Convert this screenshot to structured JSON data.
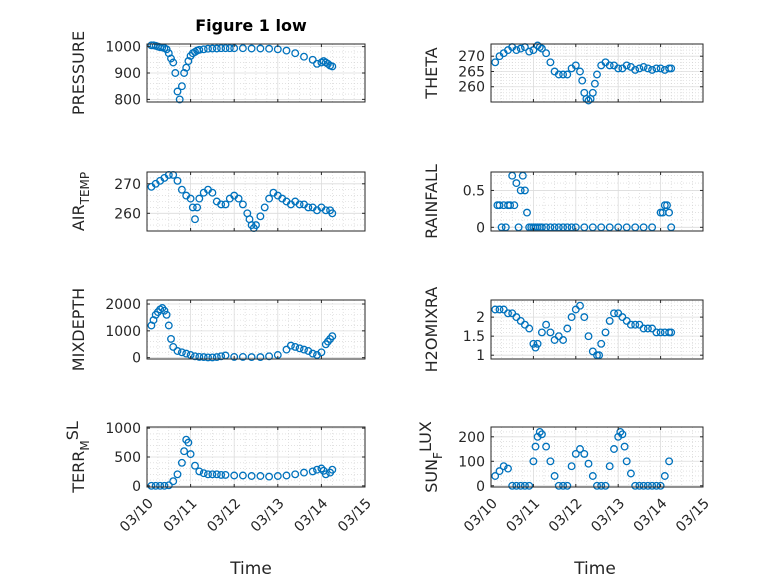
{
  "figure": {
    "title": "Figure 1 low",
    "xlabel": "Time",
    "x_ticks": [
      "03/10",
      "03/11",
      "03/12",
      "03/13",
      "03/14",
      "03/15"
    ],
    "marker_color": "#0072BD",
    "grid_color": "#d0d0d0"
  },
  "chart_data": [
    {
      "type": "scatter",
      "title": "Figure 1 low",
      "ylabel": "PRESSURE",
      "ylabel_sub": "",
      "xlim": [
        0,
        5
      ],
      "ylim": [
        790,
        1010
      ],
      "yticks": [
        800,
        900,
        1000
      ],
      "ytick_labels": [
        "800",
        "900",
        "1000"
      ],
      "x_tick_labels": [],
      "x": [
        0.1,
        0.15,
        0.2,
        0.25,
        0.3,
        0.35,
        0.4,
        0.45,
        0.5,
        0.55,
        0.6,
        0.65,
        0.7,
        0.75,
        0.8,
        0.85,
        0.9,
        0.95,
        1.0,
        1.05,
        1.1,
        1.15,
        1.2,
        1.3,
        1.4,
        1.5,
        1.6,
        1.7,
        1.8,
        1.9,
        2.0,
        2.2,
        2.4,
        2.6,
        2.8,
        3.0,
        3.2,
        3.4,
        3.6,
        3.8,
        3.9,
        4.0,
        4.05,
        4.1,
        4.15,
        4.2,
        4.25
      ],
      "y": [
        1005,
        1005,
        1003,
        1000,
        998,
        997,
        995,
        990,
        975,
        955,
        940,
        900,
        830,
        800,
        850,
        900,
        920,
        945,
        965,
        975,
        980,
        985,
        988,
        990,
        992,
        993,
        993,
        994,
        994,
        994,
        994,
        994,
        993,
        993,
        992,
        990,
        985,
        975,
        962,
        950,
        935,
        940,
        945,
        940,
        935,
        928,
        925
      ]
    },
    {
      "type": "scatter",
      "title": "",
      "ylabel": "THETA",
      "ylabel_sub": "",
      "xlim": [
        0,
        5
      ],
      "ylim": [
        255,
        274
      ],
      "yticks": [
        260,
        265,
        270
      ],
      "ytick_labels": [
        "260",
        "265",
        "270"
      ],
      "x_tick_labels": [],
      "x": [
        0.1,
        0.2,
        0.3,
        0.4,
        0.5,
        0.6,
        0.7,
        0.8,
        0.9,
        1.0,
        1.1,
        1.15,
        1.2,
        1.3,
        1.4,
        1.5,
        1.6,
        1.7,
        1.8,
        1.9,
        2.0,
        2.1,
        2.15,
        2.2,
        2.25,
        2.3,
        2.35,
        2.4,
        2.45,
        2.5,
        2.6,
        2.7,
        2.8,
        2.9,
        3.0,
        3.1,
        3.2,
        3.3,
        3.4,
        3.5,
        3.6,
        3.7,
        3.8,
        3.9,
        4.0,
        4.1,
        4.2,
        4.25
      ],
      "y": [
        268,
        270,
        271,
        272,
        273,
        272,
        272.5,
        273,
        271.5,
        272,
        273.5,
        273,
        272.5,
        271,
        268,
        265,
        264,
        264,
        264,
        266,
        267,
        265,
        262,
        258,
        256,
        255.5,
        256,
        258,
        261,
        264,
        267,
        268,
        267,
        267,
        266,
        266,
        267,
        266.5,
        265.5,
        266,
        266.5,
        266,
        265.5,
        266,
        266,
        265.5,
        266,
        266
      ]
    },
    {
      "type": "scatter",
      "title": "",
      "ylabel": "AIR",
      "ylabel_sub": "TEMP",
      "xlim": [
        0,
        5
      ],
      "ylim": [
        254,
        274
      ],
      "yticks": [
        260,
        270
      ],
      "ytick_labels": [
        "260",
        "270"
      ],
      "x_tick_labels": [],
      "x": [
        0.1,
        0.2,
        0.3,
        0.4,
        0.5,
        0.6,
        0.7,
        0.8,
        0.9,
        1.0,
        1.05,
        1.1,
        1.15,
        1.2,
        1.3,
        1.4,
        1.5,
        1.6,
        1.7,
        1.8,
        1.9,
        2.0,
        2.1,
        2.2,
        2.3,
        2.35,
        2.4,
        2.45,
        2.5,
        2.6,
        2.7,
        2.8,
        2.9,
        3.0,
        3.1,
        3.2,
        3.3,
        3.4,
        3.5,
        3.6,
        3.7,
        3.8,
        3.9,
        4.0,
        4.1,
        4.2,
        4.25
      ],
      "y": [
        269,
        270,
        271,
        272,
        273,
        273,
        271,
        268,
        266,
        265,
        262,
        258,
        262,
        265,
        267,
        268,
        267,
        264,
        263,
        263,
        265,
        266,
        265,
        263,
        260,
        258,
        256,
        255,
        256,
        259,
        262,
        265,
        267,
        266,
        265,
        264,
        263,
        264,
        263,
        263,
        262,
        262,
        261,
        262,
        261,
        261,
        260
      ]
    },
    {
      "type": "scatter",
      "title": "",
      "ylabel": "RAINFALL",
      "ylabel_sub": "",
      "xlim": [
        0,
        5
      ],
      "ylim": [
        -0.05,
        0.75
      ],
      "yticks": [
        0,
        0.5
      ],
      "ytick_labels": [
        "0",
        "0.5"
      ],
      "x_tick_labels": [],
      "x": [
        0.15,
        0.2,
        0.25,
        0.3,
        0.35,
        0.4,
        0.45,
        0.5,
        0.55,
        0.6,
        0.65,
        0.7,
        0.75,
        0.8,
        0.85,
        0.9,
        0.95,
        1.0,
        1.05,
        1.1,
        1.15,
        1.2,
        1.3,
        1.4,
        1.5,
        1.6,
        1.7,
        1.8,
        1.9,
        2.0,
        2.2,
        2.4,
        2.6,
        2.8,
        3.0,
        3.2,
        3.4,
        3.6,
        3.8,
        4.0,
        4.05,
        4.1,
        4.15,
        4.2,
        4.25
      ],
      "y": [
        0.3,
        0.3,
        0,
        0.3,
        0,
        0.3,
        0.3,
        0.7,
        0.3,
        0.6,
        0,
        0.5,
        0.7,
        0.5,
        0.2,
        0,
        0,
        0,
        0,
        0,
        0,
        0,
        0,
        0,
        0,
        0,
        0,
        0,
        0,
        0,
        0,
        0,
        0,
        0,
        0,
        0,
        0,
        0,
        0,
        0.2,
        0.2,
        0.3,
        0.3,
        0.2,
        0
      ]
    },
    {
      "type": "scatter",
      "title": "",
      "ylabel": "MIXDEPTH",
      "ylabel_sub": "",
      "xlim": [
        0,
        5
      ],
      "ylim": [
        -50,
        2150
      ],
      "yticks": [
        0,
        1000,
        2000
      ],
      "ytick_labels": [
        "0",
        "1000",
        "2000"
      ],
      "x_tick_labels": [],
      "x": [
        0.1,
        0.15,
        0.2,
        0.25,
        0.3,
        0.35,
        0.4,
        0.45,
        0.5,
        0.55,
        0.6,
        0.7,
        0.8,
        0.9,
        1.0,
        1.1,
        1.2,
        1.3,
        1.4,
        1.5,
        1.6,
        1.7,
        1.8,
        2.0,
        2.2,
        2.4,
        2.6,
        2.8,
        3.0,
        3.2,
        3.3,
        3.4,
        3.5,
        3.6,
        3.7,
        3.8,
        3.9,
        4.0,
        4.1,
        4.15,
        4.2,
        4.25
      ],
      "y": [
        1200,
        1400,
        1600,
        1700,
        1800,
        1850,
        1750,
        1600,
        1200,
        700,
        400,
        250,
        200,
        150,
        100,
        50,
        30,
        20,
        10,
        10,
        20,
        50,
        80,
        30,
        30,
        20,
        20,
        50,
        100,
        300,
        450,
        400,
        350,
        300,
        250,
        150,
        100,
        200,
        500,
        600,
        700,
        800
      ]
    },
    {
      "type": "scatter",
      "title": "",
      "ylabel": "H2OMIXRA",
      "ylabel_sub": "",
      "xlim": [
        0,
        5
      ],
      "ylim": [
        0.9,
        2.45
      ],
      "yticks": [
        1,
        1.5,
        2
      ],
      "ytick_labels": [
        "1",
        "1.5",
        "2"
      ],
      "x_tick_labels": [],
      "x": [
        0.1,
        0.2,
        0.3,
        0.4,
        0.5,
        0.6,
        0.7,
        0.8,
        0.9,
        1.0,
        1.05,
        1.1,
        1.2,
        1.3,
        1.4,
        1.5,
        1.6,
        1.7,
        1.8,
        1.9,
        2.0,
        2.1,
        2.2,
        2.3,
        2.4,
        2.5,
        2.55,
        2.6,
        2.7,
        2.8,
        2.9,
        3.0,
        3.1,
        3.2,
        3.3,
        3.4,
        3.5,
        3.6,
        3.7,
        3.8,
        3.9,
        4.0,
        4.1,
        4.2,
        4.25
      ],
      "y": [
        2.2,
        2.2,
        2.2,
        2.1,
        2.1,
        2.0,
        1.9,
        1.8,
        1.7,
        1.3,
        1.2,
        1.3,
        1.6,
        1.8,
        1.6,
        1.4,
        1.5,
        1.4,
        1.7,
        2.0,
        2.2,
        2.3,
        2.0,
        1.5,
        1.1,
        1.0,
        1.0,
        1.3,
        1.6,
        1.9,
        2.1,
        2.1,
        2.0,
        1.9,
        1.8,
        1.8,
        1.8,
        1.7,
        1.7,
        1.7,
        1.6,
        1.6,
        1.6,
        1.6,
        1.6
      ]
    },
    {
      "type": "scatter",
      "title": "",
      "ylabel": "TERR",
      "ylabel_sub": "M",
      "ylabel_sup": "SL",
      "xlim": [
        0,
        5
      ],
      "ylim": [
        -20,
        1020
      ],
      "yticks": [
        0,
        500,
        1000
      ],
      "ytick_labels": [
        "0",
        "500",
        "1000"
      ],
      "x_tick_labels": [
        "03/10",
        "03/11",
        "03/12",
        "03/13",
        "03/14",
        "03/15"
      ],
      "x": [
        0.1,
        0.2,
        0.3,
        0.4,
        0.5,
        0.6,
        0.7,
        0.8,
        0.85,
        0.9,
        0.95,
        1.0,
        1.1,
        1.2,
        1.3,
        1.4,
        1.5,
        1.6,
        1.7,
        1.8,
        2.0,
        2.2,
        2.4,
        2.6,
        2.8,
        3.0,
        3.2,
        3.4,
        3.6,
        3.8,
        3.9,
        4.0,
        4.05,
        4.1,
        4.2,
        4.25
      ],
      "y": [
        0,
        0,
        0,
        0,
        10,
        80,
        200,
        400,
        600,
        800,
        750,
        550,
        350,
        250,
        220,
        200,
        200,
        200,
        190,
        190,
        180,
        180,
        170,
        170,
        160,
        170,
        180,
        200,
        230,
        250,
        280,
        300,
        260,
        200,
        230,
        280
      ]
    },
    {
      "type": "scatter",
      "title": "",
      "ylabel": "SUN",
      "ylabel_sub": "F",
      "ylabel_sup": "LUX",
      "xlim": [
        0,
        5
      ],
      "ylim": [
        -5,
        240
      ],
      "yticks": [
        0,
        100,
        200
      ],
      "ytick_labels": [
        "0",
        "100",
        "200"
      ],
      "x_tick_labels": [
        "03/10",
        "03/11",
        "03/12",
        "03/13",
        "03/14",
        "03/15"
      ],
      "x": [
        0.1,
        0.2,
        0.3,
        0.4,
        0.5,
        0.6,
        0.7,
        0.8,
        0.9,
        1.0,
        1.05,
        1.1,
        1.15,
        1.2,
        1.3,
        1.4,
        1.5,
        1.6,
        1.7,
        1.8,
        1.9,
        2.0,
        2.1,
        2.2,
        2.3,
        2.4,
        2.5,
        2.6,
        2.7,
        2.8,
        2.9,
        3.0,
        3.05,
        3.1,
        3.15,
        3.2,
        3.3,
        3.4,
        3.5,
        3.6,
        3.7,
        3.8,
        3.9,
        4.0,
        4.1,
        4.2
      ],
      "y": [
        40,
        60,
        80,
        70,
        0,
        0,
        0,
        0,
        0,
        100,
        160,
        200,
        220,
        210,
        160,
        100,
        40,
        0,
        0,
        0,
        80,
        130,
        150,
        130,
        90,
        40,
        0,
        0,
        0,
        80,
        150,
        200,
        220,
        210,
        160,
        100,
        50,
        0,
        0,
        0,
        0,
        0,
        0,
        0,
        40,
        100
      ]
    }
  ]
}
